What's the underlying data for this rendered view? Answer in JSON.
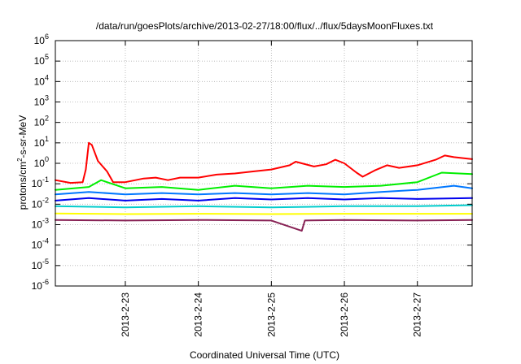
{
  "chart_data": {
    "type": "line",
    "title": "/data/run/goesPlots/archive/2013-02-27/18:00/flux/../flux/5daysMoonFluxes.txt",
    "xlabel": "Coordinated Universal Time (UTC)",
    "ylabel": {
      "prefix": "protons/cm",
      "sup": "2",
      "suffix": "-s-sr-MeV"
    },
    "y_scale": "log",
    "ylim": [
      1e-06,
      1000000.0
    ],
    "y_ticks": [
      {
        "exp": "-6",
        "value": 1e-06
      },
      {
        "exp": "-5",
        "value": 1e-05
      },
      {
        "exp": "-4",
        "value": 0.0001
      },
      {
        "exp": "-3",
        "value": 0.001
      },
      {
        "exp": "-2",
        "value": 0.01
      },
      {
        "exp": "-1",
        "value": 0.1
      },
      {
        "exp": "0",
        "value": 1
      },
      {
        "exp": "1",
        "value": 10
      },
      {
        "exp": "2",
        "value": 100
      },
      {
        "exp": "3",
        "value": 1000
      },
      {
        "exp": "4",
        "value": 10000
      },
      {
        "exp": "5",
        "value": 100000
      },
      {
        "exp": "6",
        "value": 1000000
      }
    ],
    "xlim": [
      "2013-02-22 01:00",
      "2013-02-27 18:00"
    ],
    "x_ticks": [
      {
        "label": "2013-2-23",
        "date": "2013-02-23 00:00"
      },
      {
        "label": "2013-2-24",
        "date": "2013-02-24 00:00"
      },
      {
        "label": "2013-2-25",
        "date": "2013-02-25 00:00"
      },
      {
        "label": "2013-2-26",
        "date": "2013-02-26 00:00"
      },
      {
        "label": "2013-2-27",
        "date": "2013-02-27 00:00"
      }
    ],
    "grid": true,
    "legend": "none",
    "series": [
      {
        "color": "#ff0000",
        "points": [
          [
            "2013-02-22 01:00",
            0.15
          ],
          [
            "2013-02-22 06:00",
            0.11
          ],
          [
            "2013-02-22 10:00",
            0.12
          ],
          [
            "2013-02-22 11:00",
            0.5
          ],
          [
            "2013-02-22 12:00",
            10
          ],
          [
            "2013-02-22 13:00",
            8
          ],
          [
            "2013-02-22 15:00",
            1.3
          ],
          [
            "2013-02-22 18:00",
            0.4
          ],
          [
            "2013-02-22 20:00",
            0.12
          ],
          [
            "2013-02-23 00:00",
            0.12
          ],
          [
            "2013-02-23 06:00",
            0.18
          ],
          [
            "2013-02-23 10:00",
            0.2
          ],
          [
            "2013-02-23 14:00",
            0.15
          ],
          [
            "2013-02-23 18:00",
            0.2
          ],
          [
            "2013-02-24 00:00",
            0.2
          ],
          [
            "2013-02-24 06:00",
            0.28
          ],
          [
            "2013-02-24 12:00",
            0.32
          ],
          [
            "2013-02-24 18:00",
            0.4
          ],
          [
            "2013-02-25 00:00",
            0.5
          ],
          [
            "2013-02-25 06:00",
            0.8
          ],
          [
            "2013-02-25 08:00",
            1.2
          ],
          [
            "2013-02-25 10:00",
            1.0
          ],
          [
            "2013-02-25 14:00",
            0.7
          ],
          [
            "2013-02-25 18:00",
            0.9
          ],
          [
            "2013-02-25 21:00",
            1.5
          ],
          [
            "2013-02-26 00:00",
            1.0
          ],
          [
            "2013-02-26 04:00",
            0.35
          ],
          [
            "2013-02-26 06:00",
            0.22
          ],
          [
            "2013-02-26 10:00",
            0.45
          ],
          [
            "2013-02-26 14:00",
            0.8
          ],
          [
            "2013-02-26 18:00",
            0.6
          ],
          [
            "2013-02-27 00:00",
            0.8
          ],
          [
            "2013-02-27 06:00",
            1.5
          ],
          [
            "2013-02-27 09:00",
            2.4
          ],
          [
            "2013-02-27 12:00",
            2.0
          ],
          [
            "2013-02-27 18:00",
            1.6
          ]
        ]
      },
      {
        "color": "#00ee00",
        "points": [
          [
            "2013-02-22 01:00",
            0.05
          ],
          [
            "2013-02-22 12:00",
            0.07
          ],
          [
            "2013-02-22 16:00",
            0.15
          ],
          [
            "2013-02-23 00:00",
            0.06
          ],
          [
            "2013-02-23 12:00",
            0.07
          ],
          [
            "2013-02-24 00:00",
            0.05
          ],
          [
            "2013-02-24 12:00",
            0.08
          ],
          [
            "2013-02-25 00:00",
            0.06
          ],
          [
            "2013-02-25 12:00",
            0.08
          ],
          [
            "2013-02-26 00:00",
            0.07
          ],
          [
            "2013-02-26 12:00",
            0.08
          ],
          [
            "2013-02-27 00:00",
            0.12
          ],
          [
            "2013-02-27 08:00",
            0.35
          ],
          [
            "2013-02-27 18:00",
            0.3
          ]
        ]
      },
      {
        "color": "#0077ff",
        "points": [
          [
            "2013-02-22 01:00",
            0.03
          ],
          [
            "2013-02-22 12:00",
            0.04
          ],
          [
            "2013-02-23 00:00",
            0.03
          ],
          [
            "2013-02-23 12:00",
            0.035
          ],
          [
            "2013-02-24 00:00",
            0.03
          ],
          [
            "2013-02-24 12:00",
            0.035
          ],
          [
            "2013-02-25 00:00",
            0.03
          ],
          [
            "2013-02-25 12:00",
            0.035
          ],
          [
            "2013-02-26 00:00",
            0.03
          ],
          [
            "2013-02-26 12:00",
            0.04
          ],
          [
            "2013-02-27 00:00",
            0.05
          ],
          [
            "2013-02-27 12:00",
            0.08
          ],
          [
            "2013-02-27 18:00",
            0.06
          ]
        ]
      },
      {
        "color": "#0000ee",
        "points": [
          [
            "2013-02-22 01:00",
            0.015
          ],
          [
            "2013-02-22 12:00",
            0.02
          ],
          [
            "2013-02-23 00:00",
            0.015
          ],
          [
            "2013-02-23 12:00",
            0.018
          ],
          [
            "2013-02-24 00:00",
            0.015
          ],
          [
            "2013-02-24 12:00",
            0.02
          ],
          [
            "2013-02-25 00:00",
            0.017
          ],
          [
            "2013-02-25 12:00",
            0.02
          ],
          [
            "2013-02-26 00:00",
            0.017
          ],
          [
            "2013-02-26 12:00",
            0.02
          ],
          [
            "2013-02-27 00:00",
            0.018
          ],
          [
            "2013-02-27 18:00",
            0.02
          ]
        ]
      },
      {
        "color": "#00cccc",
        "points": [
          [
            "2013-02-22 01:00",
            0.008
          ],
          [
            "2013-02-23 00:00",
            0.007
          ],
          [
            "2013-02-24 00:00",
            0.008
          ],
          [
            "2013-02-25 00:00",
            0.007
          ],
          [
            "2013-02-26 00:00",
            0.008
          ],
          [
            "2013-02-27 00:00",
            0.008
          ],
          [
            "2013-02-27 18:00",
            0.009
          ]
        ]
      },
      {
        "color": "#ffff00",
        "points": [
          [
            "2013-02-22 01:00",
            0.0035
          ],
          [
            "2013-02-23 00:00",
            0.0033
          ],
          [
            "2013-02-24 00:00",
            0.0034
          ],
          [
            "2013-02-25 00:00",
            0.0033
          ],
          [
            "2013-02-26 00:00",
            0.0034
          ],
          [
            "2013-02-27 00:00",
            0.0034
          ],
          [
            "2013-02-27 18:00",
            0.0034
          ]
        ]
      },
      {
        "color": "#882255",
        "points": [
          [
            "2013-02-22 01:00",
            0.0017
          ],
          [
            "2013-02-23 00:00",
            0.0016
          ],
          [
            "2013-02-24 00:00",
            0.0017
          ],
          [
            "2013-02-25 00:00",
            0.0016
          ],
          [
            "2013-02-25 10:00",
            0.0005
          ],
          [
            "2013-02-25 11:00",
            0.0016
          ],
          [
            "2013-02-26 00:00",
            0.0017
          ],
          [
            "2013-02-27 00:00",
            0.0016
          ],
          [
            "2013-02-27 18:00",
            0.0017
          ]
        ]
      }
    ]
  }
}
